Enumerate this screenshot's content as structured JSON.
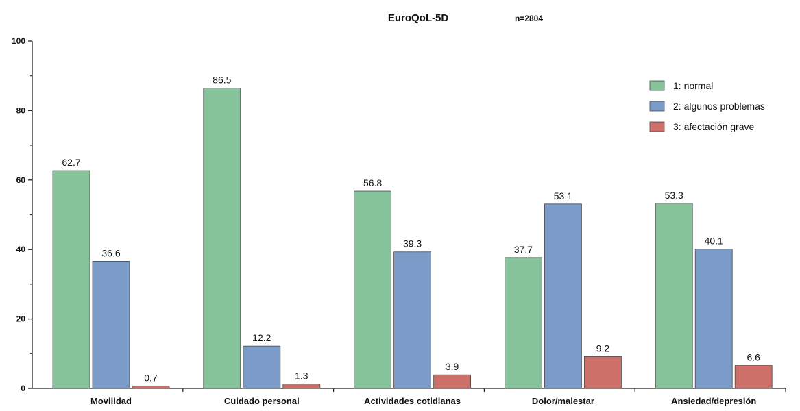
{
  "chart_data": {
    "type": "bar",
    "title": "EuroQoL-5D",
    "subtitle": "n=2804",
    "xlabel": "",
    "ylabel": "",
    "ylim": [
      0,
      100
    ],
    "yticks": [
      0,
      20,
      40,
      60,
      80,
      100
    ],
    "categories": [
      "Movilidad",
      "Cuidado personal",
      "Actividades cotidianas",
      "Dolor/malestar",
      "Ansiedad/depresión"
    ],
    "series": [
      {
        "name": "1: normal",
        "color": "#86c29a",
        "values": [
          62.7,
          86.5,
          56.8,
          37.7,
          53.3
        ]
      },
      {
        "name": "2: algunos problemas",
        "color": "#7b9bc8",
        "values": [
          36.6,
          12.2,
          39.3,
          53.1,
          40.1
        ]
      },
      {
        "name": "3: afectación grave",
        "color": "#cd706a",
        "values": [
          0.7,
          1.3,
          3.9,
          9.2,
          6.6
        ]
      }
    ],
    "data_labels": true,
    "grid": false,
    "legend_position": "top-right"
  }
}
